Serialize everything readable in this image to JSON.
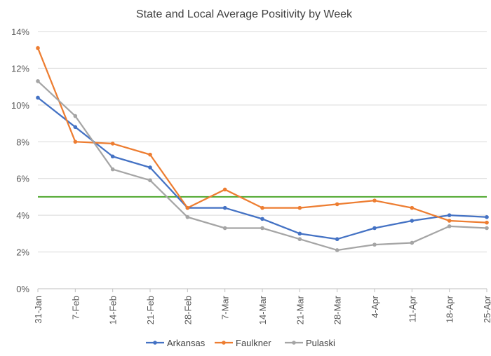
{
  "chart_data": {
    "type": "line",
    "title": "State and Local Average Positivity by Week",
    "xlabel": "",
    "ylabel": "",
    "categories": [
      "31-Jan",
      "7-Feb",
      "14-Feb",
      "21-Feb",
      "28-Feb",
      "7-Mar",
      "14-Mar",
      "21-Mar",
      "28-Mar",
      "4-Apr",
      "11-Apr",
      "18-Apr",
      "25-Apr"
    ],
    "ylim": [
      0,
      14
    ],
    "yticks": [
      0,
      2,
      4,
      6,
      8,
      10,
      12,
      14
    ],
    "ytick_labels": [
      "0%",
      "2%",
      "4%",
      "6%",
      "8%",
      "10%",
      "12%",
      "14%"
    ],
    "grid": true,
    "legend_position": "bottom",
    "reference_line": {
      "value": 5,
      "color": "#4ea72e"
    },
    "series": [
      {
        "name": "Arkansas",
        "color": "#4472c4",
        "values": [
          10.4,
          8.8,
          7.2,
          6.6,
          4.4,
          4.4,
          3.8,
          3.0,
          2.7,
          3.3,
          3.7,
          4.0,
          3.9
        ]
      },
      {
        "name": "Faulkner",
        "color": "#ed7d31",
        "values": [
          13.1,
          8.0,
          7.9,
          7.3,
          4.4,
          5.4,
          4.4,
          4.4,
          4.6,
          4.8,
          4.4,
          3.7,
          3.6
        ]
      },
      {
        "name": "Pulaski",
        "color": "#a5a5a5",
        "values": [
          11.3,
          9.4,
          6.5,
          5.9,
          3.9,
          3.3,
          3.3,
          2.7,
          2.1,
          2.4,
          2.5,
          3.4,
          3.3
        ]
      }
    ]
  }
}
